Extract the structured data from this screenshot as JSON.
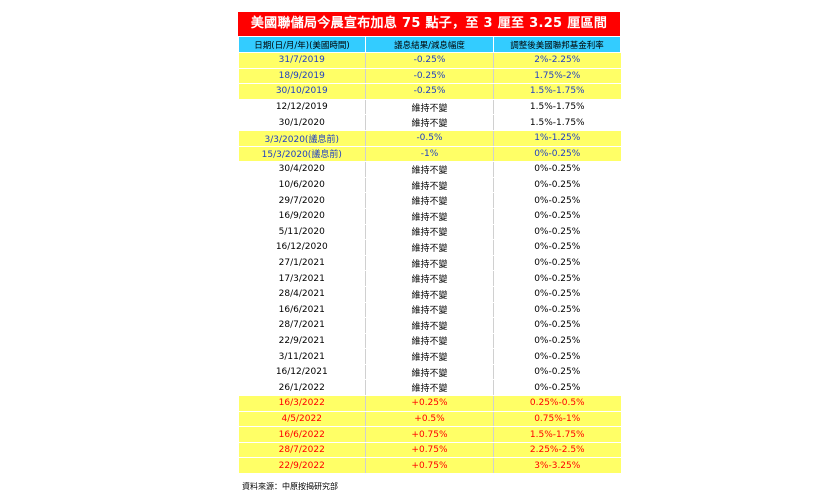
{
  "title": "美國聯儲局今晨宣布加息 75 點子，至 3 厘至 3.25 厘區間",
  "table": {
    "headers": [
      "日期(日/月/年)(美國時間)",
      "議息結果/減息幅度",
      "調整後美國聯邦基金利率"
    ],
    "rows": [
      {
        "date": "31/7/2019",
        "result": "-0.25%",
        "rate": "2%-2.25%",
        "type": "cut",
        "bg": "yellow"
      },
      {
        "date": "18/9/2019",
        "result": "-0.25%",
        "rate": "1.75%-2%",
        "type": "cut",
        "bg": "yellow"
      },
      {
        "date": "30/10/2019",
        "result": "-0.25%",
        "rate": "1.5%-1.75%",
        "type": "cut",
        "bg": "yellow"
      },
      {
        "date": "12/12/2019",
        "result": "維持不變",
        "rate": "1.5%-1.75%",
        "type": "hold",
        "bg": "white"
      },
      {
        "date": "30/1/2020",
        "result": "維持不變",
        "rate": "1.5%-1.75%",
        "type": "hold",
        "bg": "white"
      },
      {
        "date": "3/3/2020(議息前)",
        "result": "-0.5%",
        "rate": "1%-1.25%",
        "type": "cut",
        "bg": "yellow"
      },
      {
        "date": "15/3/2020(議息前)",
        "result": "-1%",
        "rate": "0%-0.25%",
        "type": "cut",
        "bg": "yellow"
      },
      {
        "date": "30/4/2020",
        "result": "維持不變",
        "rate": "0%-0.25%",
        "type": "hold",
        "bg": "white"
      },
      {
        "date": "10/6/2020",
        "result": "維持不變",
        "rate": "0%-0.25%",
        "type": "hold",
        "bg": "white"
      },
      {
        "date": "29/7/2020",
        "result": "維持不變",
        "rate": "0%-0.25%",
        "type": "hold",
        "bg": "white"
      },
      {
        "date": "16/9/2020",
        "result": "維持不變",
        "rate": "0%-0.25%",
        "type": "hold",
        "bg": "white"
      },
      {
        "date": "5/11/2020",
        "result": "維持不變",
        "rate": "0%-0.25%",
        "type": "hold",
        "bg": "white"
      },
      {
        "date": "16/12/2020",
        "result": "維持不變",
        "rate": "0%-0.25%",
        "type": "hold",
        "bg": "white"
      },
      {
        "date": "27/1/2021",
        "result": "維持不變",
        "rate": "0%-0.25%",
        "type": "hold",
        "bg": "white"
      },
      {
        "date": "17/3/2021",
        "result": "維持不變",
        "rate": "0%-0.25%",
        "type": "hold",
        "bg": "white"
      },
      {
        "date": "28/4/2021",
        "result": "維持不變",
        "rate": "0%-0.25%",
        "type": "hold",
        "bg": "white"
      },
      {
        "date": "16/6/2021",
        "result": "維持不變",
        "rate": "0%-0.25%",
        "type": "hold",
        "bg": "white"
      },
      {
        "date": "28/7/2021",
        "result": "維持不變",
        "rate": "0%-0.25%",
        "type": "hold",
        "bg": "white"
      },
      {
        "date": "22/9/2021",
        "result": "維持不變",
        "rate": "0%-0.25%",
        "type": "hold",
        "bg": "white"
      },
      {
        "date": "3/11/2021",
        "result": "維持不變",
        "rate": "0%-0.25%",
        "type": "hold",
        "bg": "white"
      },
      {
        "date": "16/12/2021",
        "result": "維持不變",
        "rate": "0%-0.25%",
        "type": "hold",
        "bg": "white"
      },
      {
        "date": "26/1/2022",
        "result": "維持不變",
        "rate": "0%-0.25%",
        "type": "hold",
        "bg": "white"
      },
      {
        "date": "16/3/2022",
        "result": "+0.25%",
        "rate": "0.25%-0.5%",
        "type": "hike",
        "bg": "yellow"
      },
      {
        "date": "4/5/2022",
        "result": "+0.5%",
        "rate": "0.75%-1%",
        "type": "hike",
        "bg": "yellow"
      },
      {
        "date": "16/6/2022",
        "result": "+0.75%",
        "rate": "1.5%-1.75%",
        "type": "hike",
        "bg": "yellow"
      },
      {
        "date": "28/7/2022",
        "result": "+0.75%",
        "rate": "2.25%-2.5%",
        "type": "hike",
        "bg": "yellow"
      },
      {
        "date": "22/9/2022",
        "result": "+0.75%",
        "rate": "3%-3.25%",
        "type": "hike",
        "bg": "yellow"
      }
    ]
  },
  "source": "資料來源：中原按揭研究部",
  "colors": {
    "title_bg": "#ff0000",
    "header_bg": "#33ccff",
    "highlight_bg": "#ffff66",
    "cut_text": "#1f3fc4",
    "hike_text": "#ff0000"
  }
}
